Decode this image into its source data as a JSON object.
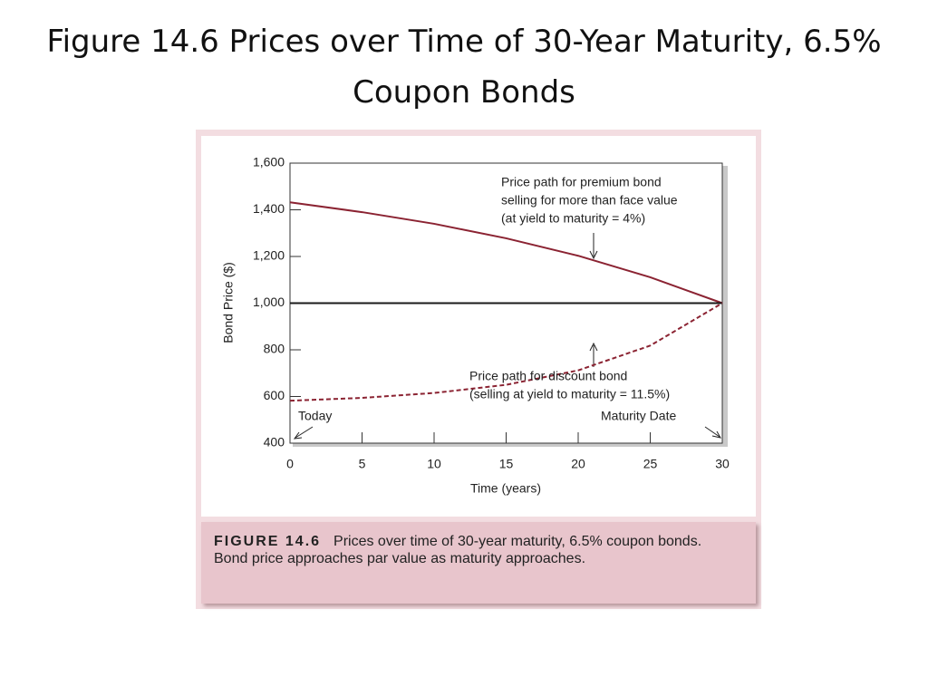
{
  "slide_title": "Figure 14.6 Prices over Time of 30-Year Maturity, 6.5% Coupon Bonds",
  "chart_data": {
    "type": "line",
    "x": [
      0,
      5,
      10,
      15,
      20,
      25,
      30
    ],
    "series": [
      {
        "color": "#8b2332",
        "dashed": false,
        "values": [
          1432,
          1390,
          1340,
          1278,
          1203,
          1111,
          1000
        ]
      },
      {
        "color": "#1a1a1a",
        "dashed": false,
        "values": [
          1000,
          1000,
          1000,
          1000,
          1000,
          1000,
          1000
        ]
      },
      {
        "color": "#8b2332",
        "dashed": true,
        "values": [
          582,
          594,
          615,
          650,
          712,
          818,
          1000
        ]
      }
    ],
    "xlim": [
      0,
      30
    ],
    "xticks": [
      0,
      5,
      10,
      15,
      20,
      25,
      30
    ],
    "ylim": [
      400,
      1600
    ],
    "yticks": [
      {
        "value": 400,
        "label": "400"
      },
      {
        "value": 600,
        "label": "600"
      },
      {
        "value": 800,
        "label": "800"
      },
      {
        "value": 1000,
        "label": "1,000"
      },
      {
        "value": 1200,
        "label": "1,200"
      },
      {
        "value": 1400,
        "label": "1,400"
      },
      {
        "value": 1600,
        "label": "1,600"
      }
    ],
    "x_label": "Time (years)",
    "y_label": "Bond Price ($)",
    "annotations": {
      "premium": [
        "Price path for premium bond",
        "selling for more than face value",
        "(at yield to maturity = 4%)"
      ],
      "discount": [
        "Price path for discount bond",
        "(selling at yield to maturity = 11.5%)"
      ],
      "today": "Today",
      "maturity": "Maturity Date"
    }
  },
  "caption": {
    "label": "FIGURE 14.6",
    "text": "Prices over time of 30-year maturity, 6.5% coupon bonds. Bond price approaches par value as maturity approaches."
  }
}
